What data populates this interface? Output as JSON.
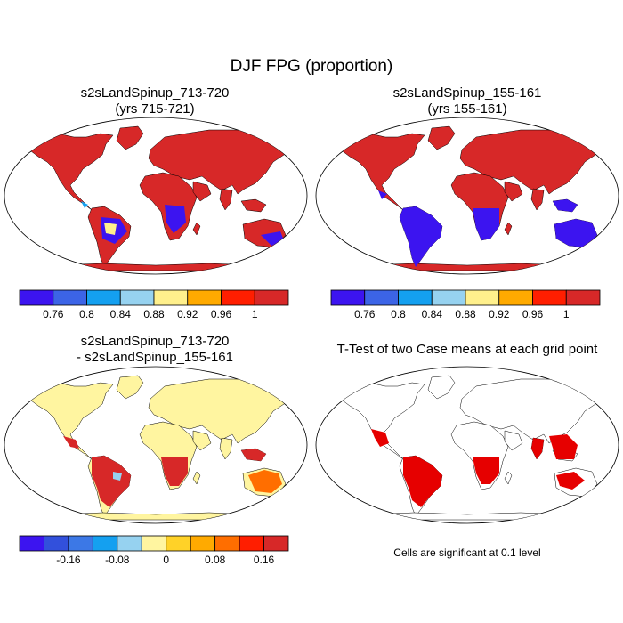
{
  "figure": {
    "title": "DJF FPG (proportion)"
  },
  "panels": {
    "top_left": {
      "title_line1": "s2sLandSpinup_713-720",
      "title_line2": "(yrs 715-721)"
    },
    "top_right": {
      "title_line1": "s2sLandSpinup_155-161",
      "title_line2": "(yrs 155-161)"
    },
    "bottom_left": {
      "title_line1": "s2sLandSpinup_713-720",
      "title_line2": "- s2sLandSpinup_155-161"
    },
    "bottom_right": {
      "title": "T-Test of two Case means at each grid point",
      "note": "Cells are significant at 0.1 level"
    }
  },
  "colorbars": {
    "absolute": {
      "colors": [
        "#3c14f0",
        "#3c64e6",
        "#14a0f0",
        "#96d2f0",
        "#fff08c",
        "#ffaa00",
        "#ff1e00",
        "#d72828"
      ],
      "tick_labels": [
        "0.76",
        "0.8",
        "0.84",
        "0.88",
        "0.92",
        "0.96",
        "1"
      ]
    },
    "difference": {
      "colors": [
        "#3c14f0",
        "#3250dc",
        "#3c78e6",
        "#14a0f0",
        "#96d2f0",
        "#fff5a0",
        "#ffd228",
        "#ffaa00",
        "#ff6e00",
        "#ff1e00",
        "#d72828"
      ],
      "tick_labels": [
        "-0.16",
        "-0.08",
        "0",
        "0.08",
        "0.16"
      ]
    }
  },
  "map_colors": {
    "ocean": "#ffffff",
    "tl_main": "#d72828",
    "tr_main": "#d72828",
    "bl_main": "#fff5a0",
    "bl_hot": "#d72828",
    "br_sig": "#e60000",
    "low": "#3c14f0"
  }
}
